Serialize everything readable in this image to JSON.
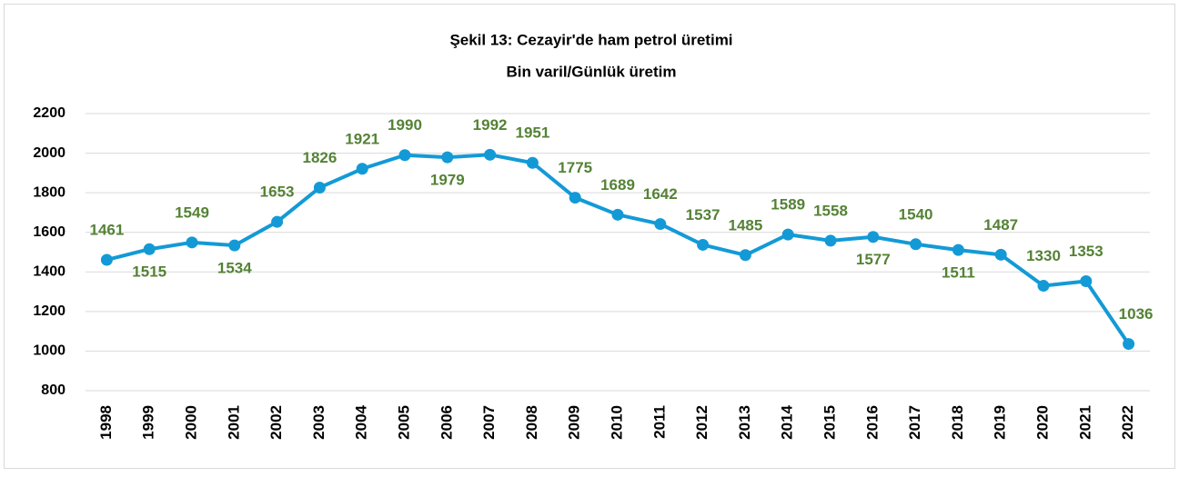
{
  "chart_data": {
    "type": "line",
    "title": "Şekil 13: Cezayir'de ham petrol üretimi",
    "subtitle": "Bin varil/Günlük üretim",
    "categories": [
      "1998",
      "1999",
      "2000",
      "2001",
      "2002",
      "2003",
      "2004",
      "2005",
      "2006",
      "2007",
      "2008",
      "2009",
      "2010",
      "2011",
      "2012",
      "2013",
      "2014",
      "2015",
      "2016",
      "2017",
      "2018",
      "2019",
      "2020",
      "2021",
      "2022"
    ],
    "series": [
      {
        "name": "Ham petrol üretimi",
        "color": "#139ad6",
        "label_color": "#548235",
        "values": [
          1461,
          1515,
          1549,
          1534,
          1653,
          1826,
          1921,
          1990,
          1979,
          1992,
          1951,
          1775,
          1689,
          1642,
          1537,
          1485,
          1589,
          1558,
          1577,
          1540,
          1511,
          1487,
          1330,
          1353,
          1036
        ]
      }
    ],
    "ylim": [
      800,
      2200
    ],
    "yticks": [
      800,
      1000,
      1200,
      1400,
      1600,
      1800,
      2000,
      2200
    ],
    "grid": true
  }
}
